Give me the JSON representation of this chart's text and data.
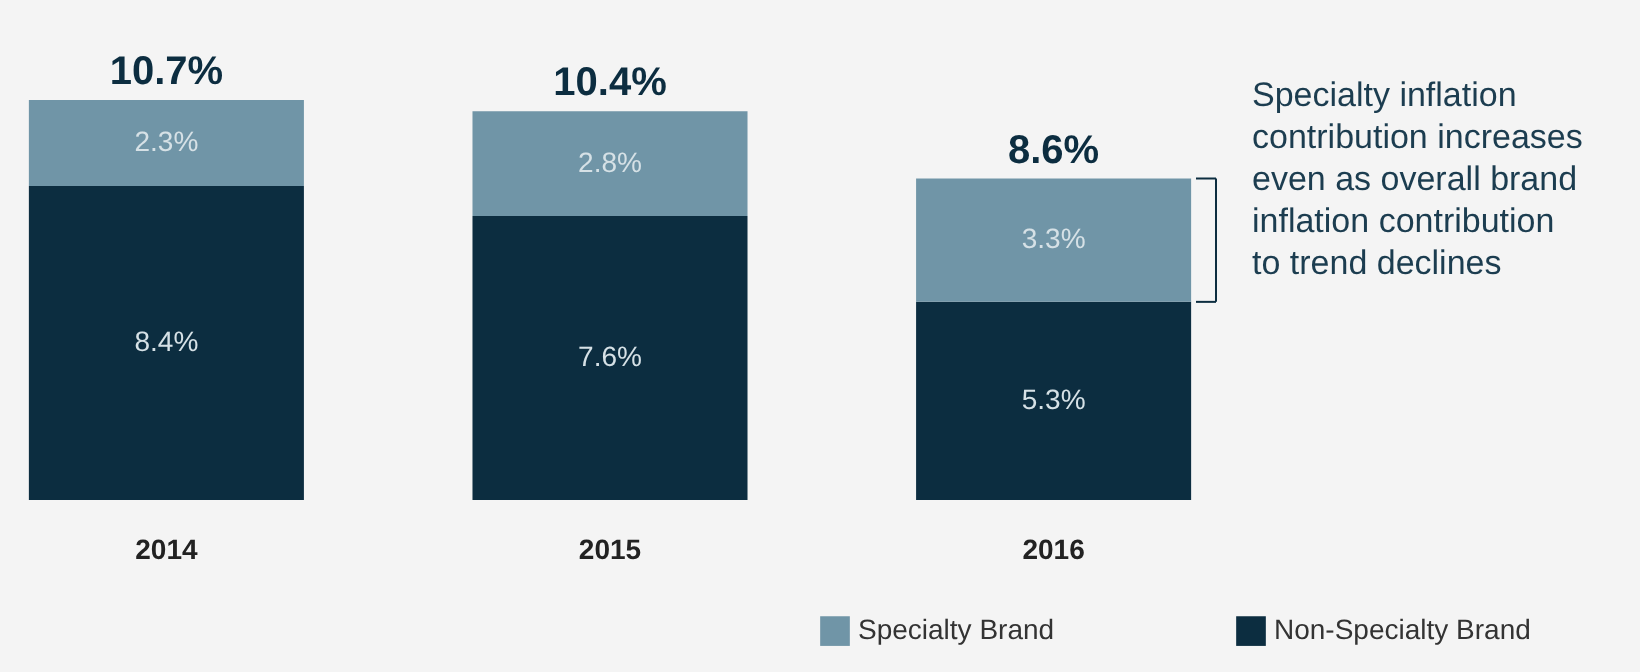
{
  "chart_data": {
    "type": "bar",
    "stacked": true,
    "categories": [
      "2014",
      "2015",
      "2016"
    ],
    "series": [
      {
        "name": "Non-Specialty Brand",
        "color": "#0c2d40",
        "values": [
          8.4,
          7.6,
          5.3
        ],
        "value_labels": [
          "8.4%",
          "7.6%",
          "5.3%"
        ]
      },
      {
        "name": "Specialty Brand",
        "color": "#7095a7",
        "values": [
          2.3,
          2.8,
          3.3
        ],
        "value_labels": [
          "2.3%",
          "2.8%",
          "3.3%"
        ]
      }
    ],
    "totals": [
      "10.7%",
      "10.4%",
      "8.6%"
    ],
    "annotations": [
      "Specialty inflation contribution increases even as overall brand inflation contribution to trend declines"
    ],
    "legend": "bottom right",
    "grid": false
  }
}
